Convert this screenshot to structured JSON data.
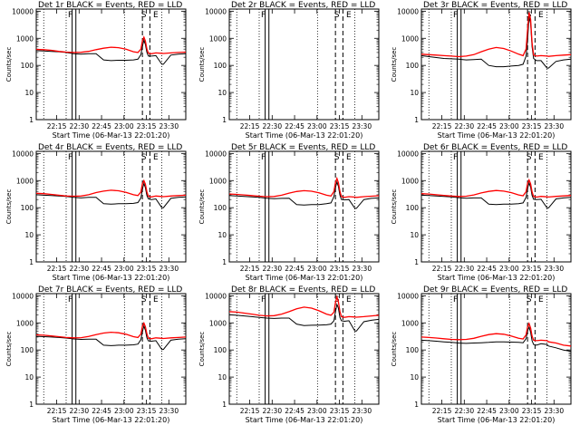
{
  "chart_data": {
    "type": "line",
    "start_label": "Start Time (06-Mar-13 22:01:20)",
    "ylabel": "Counts/sec",
    "yscale": "log",
    "ylim": [
      1,
      12000
    ],
    "yticks": [
      1,
      10,
      100,
      1000,
      10000
    ],
    "ytick_labels": [
      "1",
      "10",
      "100",
      "1000",
      "10000"
    ],
    "xlim_minutes": [
      0,
      100
    ],
    "xtick_labels": [
      "22:15",
      "22:30",
      "22:45",
      "23:00",
      "23:15",
      "23:30"
    ],
    "xtick_minutes": [
      13.67,
      28.67,
      43.67,
      58.67,
      73.67,
      88.67
    ],
    "markers": {
      "dotted_minutes": [
        5,
        20,
        59,
        84
      ],
      "solid_minutes": [
        24,
        26.5
      ],
      "dashed_minutes": [
        71,
        76
      ],
      "flags": [
        {
          "label": "F",
          "minute": 23,
          "color": "#000000"
        },
        {
          "label": "S",
          "minute": 72,
          "color": "#000000"
        },
        {
          "label": "E",
          "minute": 80,
          "color": "#000000"
        }
      ]
    },
    "x_minutes": [
      0,
      5,
      10,
      15,
      20,
      25,
      30,
      35,
      40,
      45,
      50,
      55,
      60,
      65,
      68,
      70,
      71,
      72,
      73,
      74,
      75,
      77,
      80,
      84,
      85,
      90,
      95,
      100
    ],
    "panels": [
      {
        "title": "Det 1r BLACK = Events, RED = LLD",
        "series": [
          {
            "name": "Events",
            "color": "#000000",
            "values": [
              350,
              340,
              330,
              320,
              300,
              270,
              260,
              270,
              270,
              160,
              150,
              155,
              155,
              160,
              170,
              250,
              500,
              850,
              600,
              300,
              220,
              220,
              230,
              110,
              110,
              240,
              260,
              270
            ]
          },
          {
            "name": "LLD",
            "color": "#ff0000",
            "values": [
              390,
              380,
              360,
              330,
              310,
              300,
              305,
              330,
              380,
              430,
              470,
              450,
              400,
              320,
              300,
              400,
              800,
              1100,
              800,
              400,
              280,
              270,
              290,
              280,
              275,
              290,
              300,
              310
            ]
          }
        ]
      },
      {
        "title": "Det 2r BLACK = Events, RED = LLD",
        "series": []
      },
      {
        "title": "Det 3r BLACK = Events, RED = LLD",
        "series": [
          {
            "name": "Events",
            "color": "#000000",
            "values": [
              230,
              210,
              195,
              180,
              175,
              170,
              160,
              165,
              170,
              100,
              90,
              90,
              95,
              100,
              110,
              220,
              800,
              6000,
              3500,
              500,
              180,
              150,
              150,
              80,
              80,
              140,
              160,
              170
            ]
          },
          {
            "name": "LLD",
            "color": "#ff0000",
            "values": [
              260,
              250,
              240,
              230,
              220,
              210,
              220,
              250,
              320,
              400,
              460,
              420,
              340,
              260,
              230,
              400,
              2000,
              9000,
              5000,
              700,
              240,
              220,
              230,
              220,
              215,
              230,
              240,
              250
            ]
          }
        ]
      },
      {
        "title": "Det 4r BLACK = Events, RED = LLD",
        "series": [
          {
            "name": "Events",
            "color": "#000000",
            "values": [
              300,
              290,
              280,
              270,
              260,
              240,
              230,
              240,
              240,
              140,
              135,
              140,
              140,
              145,
              155,
              230,
              480,
              780,
              550,
              280,
              210,
              200,
              210,
              100,
              100,
              220,
              240,
              250
            ]
          },
          {
            "name": "LLD",
            "color": "#ff0000",
            "values": [
              340,
              330,
              310,
              290,
              270,
              265,
              270,
              300,
              360,
              410,
              440,
              420,
              370,
              300,
              280,
              380,
              760,
              1000,
              740,
              380,
              260,
              250,
              270,
              260,
              255,
              270,
              280,
              290
            ]
          }
        ]
      },
      {
        "title": "Det 5r BLACK = Events, RED = LLD",
        "series": [
          {
            "name": "Events",
            "color": "#000000",
            "values": [
              280,
              270,
              260,
              250,
              240,
              225,
              215,
              220,
              225,
              130,
              125,
              130,
              130,
              140,
              150,
              260,
              540,
              880,
              620,
              290,
              200,
              195,
              200,
              95,
              95,
              200,
              220,
              230
            ]
          },
          {
            "name": "LLD",
            "color": "#ff0000",
            "values": [
              320,
              310,
              295,
              280,
              265,
              255,
              260,
              290,
              345,
              395,
              425,
              405,
              355,
              290,
              270,
              400,
              830,
              1200,
              840,
              400,
              255,
              240,
              255,
              245,
              240,
              255,
              265,
              275
            ]
          }
        ]
      },
      {
        "title": "Det 6r BLACK = Events, RED = LLD",
        "series": [
          {
            "name": "Events",
            "color": "#000000",
            "values": [
              290,
              280,
              270,
              260,
              250,
              235,
              225,
              230,
              230,
              135,
              130,
              135,
              135,
              140,
              150,
              240,
              500,
              820,
              580,
              285,
              205,
              200,
              205,
              98,
              98,
              210,
              230,
              240
            ]
          },
          {
            "name": "LLD",
            "color": "#ff0000",
            "values": [
              330,
              320,
              300,
              285,
              270,
              260,
              265,
              295,
              350,
              400,
              430,
              410,
              360,
              295,
              275,
              390,
              780,
              1050,
              760,
              385,
              258,
              245,
              262,
              252,
              248,
              262,
              272,
              282
            ]
          }
        ]
      },
      {
        "title": "Det 7r BLACK = Events, RED = LLD",
        "series": [
          {
            "name": "Events",
            "color": "#000000",
            "values": [
              320,
              310,
              300,
              290,
              275,
              255,
              245,
              250,
              250,
              150,
              145,
              150,
              150,
              155,
              165,
              240,
              470,
              760,
              540,
              280,
              215,
              210,
              220,
              105,
              105,
              230,
              250,
              260
            ]
          },
          {
            "name": "LLD",
            "color": "#ff0000",
            "values": [
              360,
              350,
              330,
              310,
              290,
              280,
              285,
              315,
              370,
              420,
              450,
              430,
              380,
              310,
              290,
              390,
              740,
              980,
              720,
              390,
              270,
              260,
              280,
              270,
              265,
              280,
              290,
              300
            ]
          }
        ]
      },
      {
        "title": "Det 8r BLACK = Events, RED = LLD",
        "series": [
          {
            "name": "Events",
            "color": "#000000",
            "values": [
              2000,
              1900,
              1800,
              1700,
              1600,
              1500,
              1450,
              1500,
              1500,
              900,
              800,
              820,
              830,
              850,
              900,
              1200,
              2500,
              4800,
              3500,
              1600,
              1200,
              1150,
              1200,
              500,
              500,
              1100,
              1250,
              1350
            ]
          },
          {
            "name": "LLD",
            "color": "#ff0000",
            "values": [
              2600,
              2500,
              2300,
              2100,
              1900,
              1800,
              1850,
              2100,
              2600,
              3300,
              3800,
              3500,
              2800,
              2100,
              1900,
              2500,
              5500,
              9000,
              6000,
              2600,
              1700,
              1600,
              1700,
              1650,
              1620,
              1700,
              1800,
              1900
            ]
          }
        ]
      },
      {
        "title": "Det 9r BLACK = Events, RED = LLD",
        "series": [
          {
            "name": "Events",
            "color": "#000000",
            "values": [
              230,
              220,
              210,
              200,
              190,
              180,
              175,
              180,
              185,
              190,
              200,
              200,
              195,
              190,
              185,
              260,
              500,
              700,
              450,
              220,
              160,
              150,
              170,
              160,
              140,
              120,
              100,
              90
            ]
          },
          {
            "name": "LLD",
            "color": "#ff0000",
            "values": [
              300,
              290,
              275,
              260,
              245,
              240,
              245,
              270,
              320,
              370,
              400,
              380,
              330,
              270,
              255,
              360,
              700,
              950,
              650,
              330,
              230,
              220,
              230,
              220,
              200,
              180,
              150,
              140
            ]
          }
        ]
      }
    ]
  }
}
